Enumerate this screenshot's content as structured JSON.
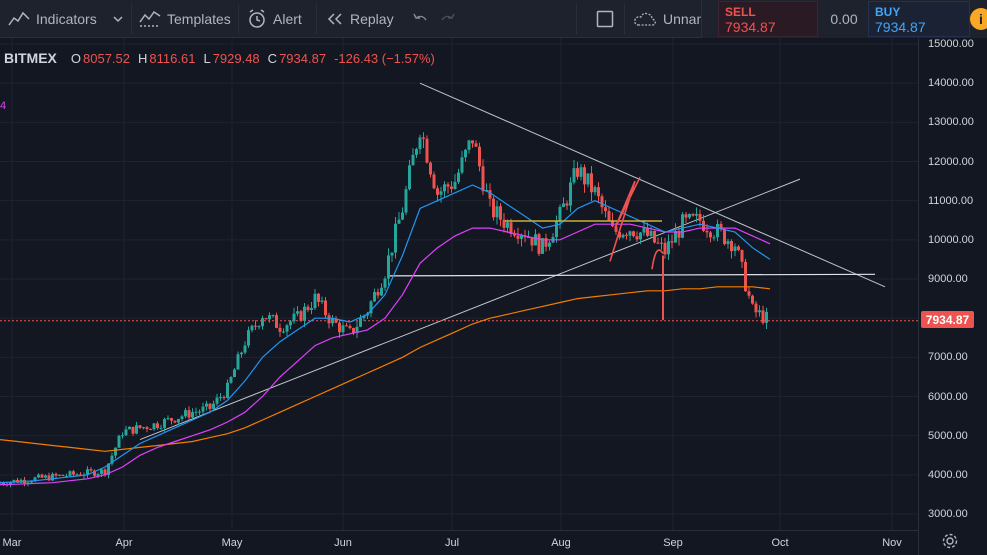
{
  "toolbar": {
    "indicators": "Indicators",
    "templates": "Templates",
    "alert": "Alert",
    "replay": "Replay",
    "layout_name": "Unnan"
  },
  "trade": {
    "sell_label": "SELL",
    "sell_price": "7934.87",
    "spread": "0.00",
    "buy_label": "BUY",
    "buy_price": "7934.87",
    "info": "i"
  },
  "legend": {
    "symbol": "BITMEX",
    "open_k": "O",
    "open": "8057.52",
    "high_k": "H",
    "high": "8116.61",
    "low_k": "L",
    "low": "7929.48",
    "close_k": "C",
    "close": "7934.87",
    "change": "-126.43 (−1.57%)",
    "indicator_mark": "4"
  },
  "current_price": "7934.87",
  "colors": {
    "up": "#26a69a",
    "down": "#ef5350",
    "ma_fast": "#2196f3",
    "ma_mid": "#e040fb",
    "ma_slow": "#f57c00",
    "trend": "#c0c4cc",
    "background": "#131722"
  },
  "chart_data": {
    "type": "candlestick",
    "y_ticks": [
      "15000.00",
      "14000.00",
      "13000.00",
      "12000.00",
      "11000.00",
      "10000.00",
      "9000.00",
      "8000.00",
      "7000.00",
      "6000.00",
      "5000.00",
      "4000.00",
      "3000.00"
    ],
    "x_ticks": [
      "Mar",
      "Apr",
      "May",
      "Jun",
      "Jul",
      "Aug",
      "Sep",
      "Oct",
      "Nov"
    ],
    "ylim": [
      2700,
      15100
    ],
    "candles_weekly_close": [
      3800,
      3850,
      3900,
      3950,
      4000,
      4050,
      4100,
      5100,
      5200,
      5300,
      5450,
      5600,
      5700,
      6200,
      7400,
      8100,
      7800,
      8000,
      8500,
      7900,
      7600,
      8200,
      9200,
      10800,
      12900,
      11200,
      11500,
      12600,
      10800,
      10400,
      10200,
      9800,
      10600,
      11800,
      11200,
      10200,
      10300,
      10100,
      9700,
      10400,
      10500,
      10200,
      9900,
      8200,
      7935
    ],
    "ma_fast": [
      3800,
      3820,
      3850,
      3900,
      3950,
      4000,
      4200,
      4500,
      4800,
      5000,
      5200,
      5400,
      5600,
      5900,
      6400,
      7000,
      7400,
      7700,
      8000,
      8000,
      7900,
      8100,
      8600,
      9600,
      10800,
      11000,
      11200,
      11400,
      11200,
      10900,
      10600,
      10300,
      10400,
      10800,
      11000,
      10800,
      10600,
      10400,
      10200,
      10300,
      10400,
      10300,
      10200,
      9800,
      9500
    ],
    "ma_mid": [
      3750,
      3760,
      3780,
      3800,
      3850,
      3900,
      4000,
      4200,
      4500,
      4700,
      4850,
      5000,
      5150,
      5350,
      5600,
      6000,
      6500,
      6900,
      7300,
      7500,
      7600,
      7700,
      8000,
      8600,
      9400,
      9800,
      10100,
      10300,
      10300,
      10200,
      10100,
      10000,
      10000,
      10200,
      10400,
      10400,
      10400,
      10300,
      10200,
      10200,
      10300,
      10300,
      10300,
      10100,
      9900
    ],
    "ma_slow": [
      4900,
      4850,
      4800,
      4750,
      4700,
      4650,
      4600,
      4650,
      4700,
      4750,
      4800,
      4850,
      4950,
      5050,
      5200,
      5400,
      5600,
      5800,
      6000,
      6200,
      6400,
      6600,
      6800,
      7000,
      7250,
      7450,
      7650,
      7850,
      8000,
      8100,
      8200,
      8300,
      8400,
      8500,
      8550,
      8600,
      8650,
      8700,
      8700,
      8750,
      8750,
      8800,
      8800,
      8800,
      8750
    ]
  }
}
